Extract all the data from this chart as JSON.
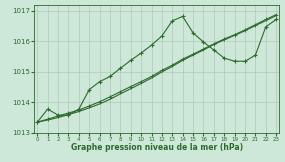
{
  "hours": [
    0,
    1,
    2,
    3,
    4,
    5,
    6,
    7,
    8,
    9,
    10,
    11,
    12,
    13,
    14,
    15,
    16,
    17,
    18,
    19,
    20,
    21,
    22,
    23
  ],
  "line_peak": [
    1013.35,
    1013.78,
    1013.58,
    1013.58,
    1013.78,
    1014.42,
    1014.68,
    1014.85,
    1015.12,
    1015.38,
    1015.62,
    1015.88,
    1016.18,
    1016.68,
    1016.82,
    1016.28,
    1015.98,
    1015.72,
    1015.45,
    1015.35,
    1015.35,
    1015.55,
    1016.48,
    1016.72
  ],
  "line_straight1": [
    1013.35,
    1013.45,
    1013.55,
    1013.65,
    1013.75,
    1013.88,
    1014.02,
    1014.18,
    1014.35,
    1014.52,
    1014.68,
    1014.85,
    1015.05,
    1015.22,
    1015.42,
    1015.58,
    1015.75,
    1015.92,
    1016.08,
    1016.22,
    1016.38,
    1016.55,
    1016.72,
    1016.88
  ],
  "line_straight2": [
    1013.35,
    1013.42,
    1013.5,
    1013.6,
    1013.7,
    1013.82,
    1013.95,
    1014.1,
    1014.28,
    1014.45,
    1014.62,
    1014.8,
    1015.0,
    1015.18,
    1015.38,
    1015.55,
    1015.72,
    1015.9,
    1016.05,
    1016.2,
    1016.35,
    1016.52,
    1016.68,
    1016.85
  ],
  "bg_color": "#cde8d8",
  "line_color": "#2d6a2d",
  "grid_color": "#b0c8b8",
  "xlabel": "Graphe pression niveau de la mer (hPa)",
  "ylim": [
    1013.0,
    1017.2
  ],
  "yticks": [
    1013,
    1014,
    1015,
    1016,
    1017
  ],
  "xticks": [
    0,
    1,
    2,
    3,
    4,
    5,
    6,
    7,
    8,
    9,
    10,
    11,
    12,
    13,
    14,
    15,
    16,
    17,
    18,
    19,
    20,
    21,
    22,
    23
  ],
  "xlim": [
    -0.3,
    23.3
  ]
}
